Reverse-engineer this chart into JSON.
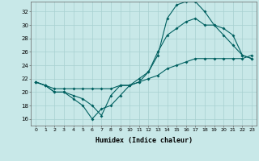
{
  "xlabel": "Humidex (Indice chaleur)",
  "bg_color": "#c8e8e8",
  "line_color": "#006060",
  "grid_color": "#a8d0d0",
  "xlim": [
    -0.5,
    23.5
  ],
  "ylim": [
    15.0,
    33.5
  ],
  "xticks": [
    0,
    1,
    2,
    3,
    4,
    5,
    6,
    7,
    8,
    9,
    10,
    11,
    12,
    13,
    14,
    15,
    16,
    17,
    18,
    19,
    20,
    21,
    22,
    23
  ],
  "yticks": [
    16,
    18,
    20,
    22,
    24,
    26,
    28,
    30,
    32
  ],
  "line1_x": [
    0,
    1,
    2,
    3,
    4,
    5,
    6,
    7,
    8,
    9,
    10,
    11,
    12,
    13,
    14,
    15,
    16,
    17,
    18,
    19,
    20,
    21,
    22,
    23
  ],
  "line1_y": [
    21.5,
    21.0,
    20.0,
    20.0,
    19.0,
    18.0,
    16.0,
    17.5,
    18.0,
    19.5,
    21.0,
    21.5,
    23.0,
    25.5,
    31.0,
    33.0,
    33.5,
    33.5,
    32.0,
    30.0,
    28.5,
    27.0,
    25.5,
    25.0
  ],
  "line2_x": [
    0,
    1,
    2,
    3,
    4,
    5,
    6,
    7,
    8,
    9,
    10,
    11,
    12,
    13,
    14,
    15,
    16,
    17,
    18,
    19,
    20,
    21,
    22,
    23
  ],
  "line2_y": [
    21.5,
    21.0,
    20.0,
    20.0,
    19.5,
    19.0,
    18.0,
    16.5,
    19.5,
    21.0,
    21.0,
    22.0,
    23.0,
    26.0,
    28.5,
    29.5,
    30.5,
    31.0,
    30.0,
    30.0,
    29.5,
    28.5,
    25.5,
    25.0
  ],
  "line3_x": [
    0,
    1,
    2,
    3,
    4,
    5,
    6,
    7,
    8,
    9,
    10,
    11,
    12,
    13,
    14,
    15,
    16,
    17,
    18,
    19,
    20,
    21,
    22,
    23
  ],
  "line3_y": [
    21.5,
    21.0,
    20.5,
    20.5,
    20.5,
    20.5,
    20.5,
    20.5,
    20.5,
    21.0,
    21.0,
    21.5,
    22.0,
    22.5,
    23.5,
    24.0,
    24.5,
    25.0,
    25.0,
    25.0,
    25.0,
    25.0,
    25.0,
    25.5
  ]
}
